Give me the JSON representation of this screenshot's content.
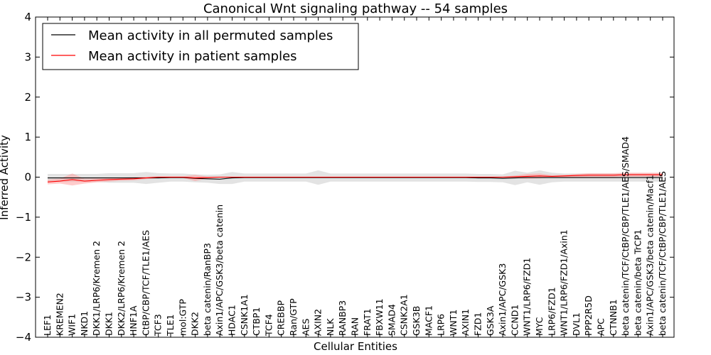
{
  "chart_data": {
    "type": "line",
    "title": "Canonical Wnt signaling pathway -- 54 samples",
    "xlabel": "Cellular Entities",
    "ylabel": "Inferred Activity",
    "ylim": [
      -4,
      4
    ],
    "yticks": [
      4,
      3,
      2,
      1,
      0,
      -1,
      -2,
      -3,
      -4
    ],
    "ytick_labels": [
      "4",
      "3",
      "2",
      "1",
      "0",
      "−1",
      "−2",
      "−3",
      "−4"
    ],
    "grid": false,
    "legend_position": "top-left",
    "categories": [
      "LEF1",
      "KREMEN2",
      "WIF1",
      "NKD1",
      "DKK1/LRP6/Kremen 2",
      "DKK1",
      "DKK2/LRP6/Kremen 2",
      "HNF1A",
      "CtBP/CBP/TCF/TLE1/AES",
      "TCF3",
      "TLE1",
      "mol:GTP",
      "DKK2",
      "beta catenin/RanBP3",
      "Axin1/APC/GSK3/beta catenin",
      "HDAC1",
      "CSNK1A1",
      "CTBP1",
      "TCF4",
      "CREBBP",
      "Ran/GTP",
      "AES",
      "AXIN2",
      "NLK",
      "RANBP3",
      "RAN",
      "FRAT1",
      "FBXW11",
      "SMAD4",
      "CSNK2A1",
      "GSK3B",
      "MACF1",
      "LRP6",
      "WNT1",
      "AXIN1",
      "FZD1",
      "GSK3A",
      "Axin1/APC/GSK3",
      "CCND1",
      "WNT1/LRP6/FZD1",
      "MYC",
      "LRP6/FZD1",
      "WNT1/LRP6/FZD1/Axin1",
      "DVL1",
      "PPP2R5D",
      "APC",
      "CTNNB1",
      "beta catenin/TCF/CtBP/CBP/TLE1/AES/SMAD4",
      "beta catenin/beta TrCP1",
      "Axin1/APC/GSK3/beta catenin/Macf1",
      "beta catenin/TCF/CtBP/CBP/TLE1/AES"
    ],
    "series": [
      {
        "name": "Mean activity in all permuted samples",
        "color": "#000000",
        "band_color": "#cccccc",
        "values": [
          -0.02,
          -0.02,
          -0.02,
          -0.02,
          -0.02,
          -0.02,
          -0.02,
          -0.02,
          -0.02,
          -0.02,
          -0.01,
          -0.01,
          -0.03,
          -0.04,
          -0.05,
          -0.02,
          -0.01,
          -0.01,
          -0.01,
          -0.01,
          -0.01,
          -0.01,
          -0.01,
          -0.01,
          -0.01,
          -0.01,
          -0.01,
          -0.01,
          -0.01,
          -0.01,
          -0.01,
          -0.01,
          -0.01,
          -0.01,
          -0.01,
          -0.02,
          -0.02,
          -0.03,
          -0.02,
          -0.01,
          -0.01,
          -0.01,
          -0.01,
          -0.01,
          -0.01,
          -0.01,
          -0.01,
          -0.01,
          -0.01,
          -0.01,
          -0.01
        ],
        "band": [
          0.1,
          0.1,
          0.1,
          0.1,
          0.1,
          0.12,
          0.12,
          0.12,
          0.15,
          0.12,
          0.1,
          0.1,
          0.1,
          0.1,
          0.12,
          0.15,
          0.1,
          0.1,
          0.1,
          0.1,
          0.1,
          0.1,
          0.18,
          0.1,
          0.1,
          0.1,
          0.1,
          0.1,
          0.1,
          0.1,
          0.1,
          0.1,
          0.1,
          0.1,
          0.1,
          0.1,
          0.1,
          0.1,
          0.18,
          0.12,
          0.18,
          0.12,
          0.1,
          0.1,
          0.1,
          0.1,
          0.1,
          0.1,
          0.1,
          0.1,
          0.1
        ]
      },
      {
        "name": "Mean activity in patient samples",
        "color": "#ff0000",
        "band_color": "#ff9999",
        "values": [
          -0.12,
          -0.1,
          -0.06,
          -0.1,
          -0.08,
          -0.06,
          -0.05,
          -0.04,
          -0.02,
          0.0,
          0.0,
          0.0,
          -0.02,
          -0.01,
          0.0,
          0.0,
          0.0,
          0.0,
          0.0,
          0.0,
          0.0,
          0.0,
          0.0,
          0.0,
          0.0,
          0.0,
          0.0,
          0.0,
          0.0,
          0.0,
          0.0,
          0.0,
          0.0,
          0.0,
          0.0,
          0.0,
          0.0,
          0.0,
          0.01,
          0.02,
          0.03,
          0.02,
          0.03,
          0.04,
          0.05,
          0.05,
          0.05,
          0.06,
          0.06,
          0.06,
          0.06
        ],
        "band": [
          0.06,
          0.06,
          0.15,
          0.06,
          0.05,
          0.05,
          0.04,
          0.04,
          0.03,
          0.02,
          0.02,
          0.02,
          0.08,
          0.02,
          0.01,
          0.01,
          0.01,
          0.01,
          0.01,
          0.01,
          0.01,
          0.01,
          0.01,
          0.01,
          0.01,
          0.01,
          0.01,
          0.01,
          0.01,
          0.01,
          0.01,
          0.01,
          0.01,
          0.01,
          0.01,
          0.01,
          0.01,
          0.01,
          0.03,
          0.06,
          0.06,
          0.03,
          0.03,
          0.04,
          0.05,
          0.05,
          0.05,
          0.05,
          0.05,
          0.05,
          0.05
        ]
      }
    ]
  }
}
